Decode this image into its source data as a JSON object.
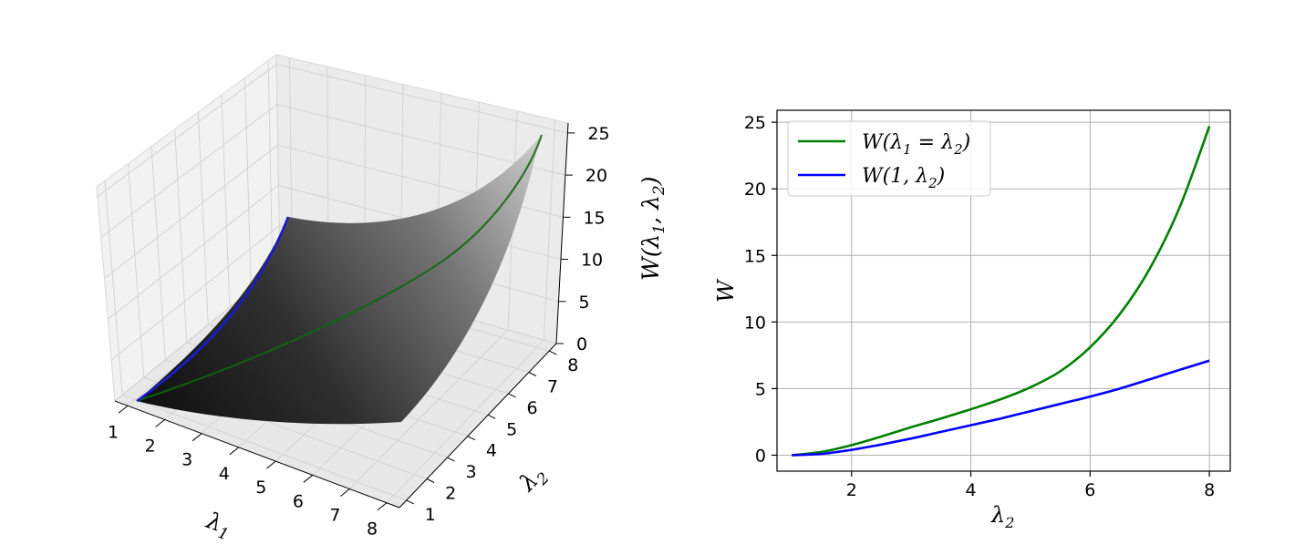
{
  "chart_data": [
    {
      "type": "surface3d",
      "x_axis": {
        "ticks": [
          "1",
          "2",
          "3",
          "4",
          "5",
          "6",
          "7",
          "8"
        ]
      },
      "y_axis": {
        "ticks": [
          "1",
          "2",
          "3",
          "4",
          "5",
          "6",
          "7",
          "8"
        ]
      },
      "z_axis": {
        "ticks": [
          "0",
          "5",
          "10",
          "15",
          "20",
          "25"
        ]
      },
      "xlabel": "λ1",
      "ylabel": "λ2",
      "zlabel": "W(λ1, λ2)",
      "xlim": [
        1,
        8
      ],
      "ylim": [
        1,
        8
      ],
      "zlim": [
        0,
        25
      ],
      "surface_colormap": "grayscale (dark at low W, light at high W)",
      "curves": [
        {
          "name": "W(λ1 = λ2)",
          "color": "#008000"
        },
        {
          "name": "W(1, λ2)",
          "color": "#0000ff"
        }
      ]
    },
    {
      "type": "line",
      "xlabel": "λ2",
      "ylabel": "W",
      "xlim": [
        0.75,
        8.35
      ],
      "ylim": [
        -1.2,
        25.9
      ],
      "x_ticks": [
        "2",
        "4",
        "6",
        "8"
      ],
      "y_ticks": [
        "0",
        "5",
        "10",
        "15",
        "20",
        "25"
      ],
      "grid": true,
      "legend_position": "top-left",
      "series": [
        {
          "name": "W(λ1 = λ2)",
          "color": "#008000",
          "x": [
            1,
            1.5,
            2,
            2.5,
            3,
            3.5,
            4,
            4.5,
            5,
            5.5,
            6,
            6.5,
            7,
            7.5,
            8
          ],
          "y": [
            0,
            0.25,
            0.75,
            1.4,
            2.1,
            2.75,
            3.45,
            4.2,
            5.1,
            6.3,
            8.1,
            10.6,
            14.0,
            18.6,
            24.7
          ]
        },
        {
          "name": "W(1, λ2)",
          "color": "#0000ff",
          "x": [
            1,
            1.5,
            2,
            2.5,
            3,
            3.5,
            4,
            4.5,
            5,
            5.5,
            6,
            6.5,
            7,
            7.5,
            8
          ],
          "y": [
            0,
            0.1,
            0.4,
            0.8,
            1.25,
            1.75,
            2.25,
            2.75,
            3.3,
            3.85,
            4.4,
            5.0,
            5.7,
            6.4,
            7.1
          ]
        }
      ]
    }
  ]
}
